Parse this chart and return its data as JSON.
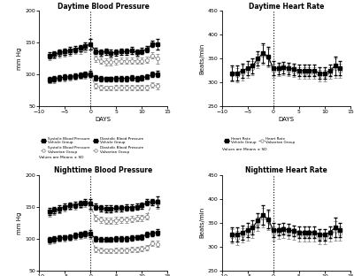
{
  "title_dbp_day": "Daytime Blood Pressure",
  "title_hr_day": "Daytime Heart Rate",
  "title_dbp_night": "Nighttime Blood Pressure",
  "title_hr_night": "Nighttime Heart Rate",
  "ylabel_bp": "mm Hg",
  "ylabel_hr": "Beats/min",
  "xlabel": "DAYS",
  "ylim_bp": [
    50,
    200
  ],
  "ylim_hr": [
    250,
    450
  ],
  "yticks_bp": [
    50,
    100,
    150,
    200
  ],
  "yticks_hr": [
    250,
    300,
    350,
    400,
    450
  ],
  "xlim": [
    -10,
    15
  ],
  "xticks": [
    -10,
    -5,
    0,
    5,
    10,
    15
  ],
  "vline_x": 0,
  "day_sbp_veh": [
    130,
    132,
    135,
    136,
    138,
    140,
    142,
    145,
    148,
    137,
    135,
    136,
    134,
    135,
    136,
    136,
    138,
    135,
    137,
    140,
    148,
    148
  ],
  "day_sbp_veh_err": [
    5,
    5,
    5,
    5,
    5,
    5,
    5,
    5,
    8,
    5,
    5,
    5,
    5,
    5,
    5,
    5,
    5,
    5,
    5,
    5,
    5,
    8
  ],
  "day_dbp_veh": [
    92,
    94,
    95,
    96,
    97,
    98,
    99,
    100,
    101,
    95,
    94,
    93,
    93,
    94,
    94,
    94,
    95,
    94,
    95,
    97,
    100,
    101
  ],
  "day_dbp_veh_err": [
    4,
    4,
    4,
    4,
    4,
    4,
    4,
    4,
    5,
    4,
    4,
    4,
    4,
    4,
    4,
    4,
    4,
    4,
    4,
    4,
    4,
    5
  ],
  "day_sbp_val": [
    128,
    130,
    132,
    133,
    135,
    137,
    138,
    140,
    148,
    125,
    122,
    120,
    120,
    121,
    122,
    122,
    122,
    122,
    122,
    123,
    130,
    125
  ],
  "day_sbp_val_err": [
    5,
    5,
    5,
    5,
    5,
    5,
    5,
    5,
    8,
    5,
    5,
    5,
    5,
    5,
    5,
    5,
    5,
    5,
    5,
    5,
    5,
    8
  ],
  "day_dbp_val": [
    90,
    91,
    93,
    94,
    95,
    96,
    97,
    98,
    100,
    82,
    80,
    79,
    79,
    80,
    80,
    80,
    80,
    80,
    80,
    80,
    84,
    82
  ],
  "day_dbp_val_err": [
    4,
    4,
    4,
    4,
    4,
    4,
    4,
    4,
    5,
    4,
    4,
    4,
    4,
    4,
    4,
    4,
    4,
    4,
    4,
    4,
    4,
    5
  ],
  "day_hr_veh": [
    320,
    320,
    325,
    330,
    335,
    350,
    362,
    355,
    330,
    330,
    332,
    330,
    328,
    325,
    325,
    325,
    325,
    320,
    320,
    325,
    335,
    330
  ],
  "day_hr_veh_err": [
    15,
    15,
    15,
    15,
    15,
    15,
    20,
    20,
    15,
    12,
    12,
    12,
    12,
    12,
    12,
    12,
    12,
    12,
    12,
    12,
    20,
    15
  ],
  "day_hr_val": [
    318,
    315,
    320,
    325,
    330,
    345,
    358,
    352,
    325,
    326,
    328,
    325,
    323,
    320,
    320,
    320,
    320,
    315,
    315,
    320,
    330,
    325
  ],
  "day_hr_val_err": [
    15,
    15,
    15,
    15,
    15,
    15,
    20,
    20,
    15,
    12,
    12,
    12,
    12,
    12,
    12,
    12,
    12,
    12,
    12,
    12,
    20,
    15
  ],
  "night_sbp_veh": [
    143,
    145,
    147,
    150,
    152,
    153,
    155,
    157,
    155,
    150,
    148,
    147,
    147,
    148,
    148,
    149,
    149,
    150,
    152,
    157,
    158,
    158
  ],
  "night_sbp_veh_err": [
    5,
    5,
    5,
    5,
    5,
    5,
    5,
    5,
    8,
    5,
    5,
    5,
    5,
    5,
    5,
    5,
    5,
    5,
    5,
    5,
    5,
    8
  ],
  "night_dbp_veh": [
    98,
    100,
    101,
    102,
    103,
    105,
    107,
    108,
    108,
    100,
    99,
    99,
    99,
    100,
    100,
    100,
    101,
    102,
    103,
    107,
    108,
    110
  ],
  "night_dbp_veh_err": [
    4,
    4,
    4,
    4,
    4,
    4,
    4,
    4,
    5,
    4,
    4,
    4,
    4,
    4,
    4,
    4,
    4,
    4,
    4,
    4,
    4,
    5
  ],
  "night_sbp_val": [
    140,
    142,
    145,
    148,
    150,
    151,
    153,
    155,
    152,
    132,
    130,
    128,
    128,
    129,
    130,
    130,
    131,
    132,
    133,
    135,
    158,
    155
  ],
  "night_sbp_val_err": [
    5,
    5,
    5,
    5,
    5,
    5,
    5,
    5,
    8,
    5,
    5,
    5,
    5,
    5,
    5,
    5,
    5,
    5,
    5,
    5,
    5,
    8
  ],
  "night_dbp_val": [
    96,
    97,
    99,
    100,
    101,
    102,
    104,
    105,
    105,
    83,
    82,
    81,
    81,
    82,
    82,
    82,
    83,
    83,
    84,
    86,
    93,
    92
  ],
  "night_dbp_val_err": [
    4,
    4,
    4,
    4,
    4,
    4,
    4,
    4,
    5,
    4,
    4,
    4,
    4,
    4,
    4,
    4,
    4,
    4,
    4,
    4,
    4,
    5
  ],
  "night_hr_veh": [
    325,
    325,
    330,
    335,
    340,
    355,
    366,
    358,
    335,
    335,
    337,
    335,
    333,
    330,
    330,
    330,
    330,
    325,
    325,
    330,
    340,
    335
  ],
  "night_hr_veh_err": [
    15,
    15,
    15,
    15,
    15,
    15,
    20,
    20,
    15,
    12,
    12,
    12,
    12,
    12,
    12,
    12,
    12,
    12,
    12,
    12,
    20,
    15
  ],
  "night_hr_val": [
    322,
    318,
    323,
    328,
    333,
    348,
    361,
    354,
    328,
    329,
    331,
    328,
    326,
    323,
    323,
    323,
    323,
    318,
    318,
    323,
    333,
    328
  ],
  "night_hr_val_err": [
    15,
    15,
    15,
    15,
    15,
    15,
    20,
    20,
    15,
    12,
    12,
    12,
    12,
    12,
    12,
    12,
    12,
    12,
    12,
    12,
    20,
    15
  ],
  "days_all": [
    -8,
    -7,
    -6,
    -5,
    -4,
    -3,
    -2,
    -1,
    0,
    1,
    2,
    3,
    4,
    5,
    6,
    7,
    8,
    9,
    10,
    11,
    12,
    13
  ],
  "color_veh": "#000000",
  "color_val": "#888888",
  "markersize": 3,
  "linewidth": 0.8,
  "capsize": 1.5,
  "elinewidth": 0.6,
  "footnote": "Values are Means ± SD",
  "background_color": "#ffffff"
}
